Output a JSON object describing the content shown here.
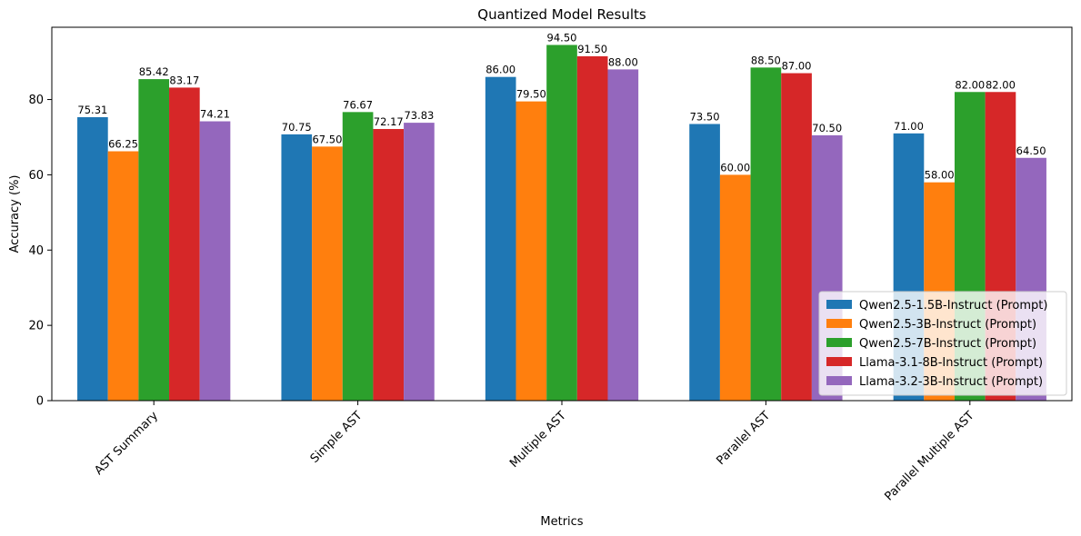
{
  "chart_data": {
    "type": "bar",
    "title": "Quantized Model Results",
    "xlabel": "Metrics",
    "ylabel": "Accuracy (%)",
    "ylim": [
      0,
      99.2
    ],
    "yticks": [
      0,
      20,
      40,
      60,
      80
    ],
    "categories": [
      "AST Summary",
      "Simple AST",
      "Multiple AST",
      "Parallel AST",
      "Parallel Multiple AST"
    ],
    "series": [
      {
        "name": "Qwen2.5-1.5B-Instruct (Prompt)",
        "color": "#1f77b4",
        "values": [
          75.31,
          70.75,
          86.0,
          73.5,
          71.0
        ],
        "labels": [
          "75.31",
          "70.75",
          "86.00",
          "73.50",
          "71.00"
        ]
      },
      {
        "name": "Qwen2.5-3B-Instruct (Prompt)",
        "color": "#ff7f0e",
        "values": [
          66.25,
          67.5,
          79.5,
          60.0,
          58.0
        ],
        "labels": [
          "66.25",
          "67.50",
          "79.50",
          "60.00",
          "58.00"
        ]
      },
      {
        "name": "Qwen2.5-7B-Instruct (Prompt)",
        "color": "#2ca02c",
        "values": [
          85.42,
          76.67,
          94.5,
          88.5,
          82.0
        ],
        "labels": [
          "85.42",
          "76.67",
          "94.50",
          "88.50",
          "82.00"
        ]
      },
      {
        "name": "Llama-3.1-8B-Instruct (Prompt)",
        "color": "#d62728",
        "values": [
          83.17,
          72.17,
          91.5,
          87.0,
          82.0
        ],
        "labels": [
          "83.17",
          "72.17",
          "91.50",
          "87.00",
          "82.00"
        ]
      },
      {
        "name": "Llama-3.2-3B-Instruct (Prompt)",
        "color": "#9467bd",
        "values": [
          74.21,
          73.83,
          88.0,
          70.5,
          64.5
        ],
        "labels": [
          "74.21",
          "73.83",
          "88.00",
          "70.50",
          "64.50"
        ]
      }
    ],
    "legend_position": "bottom-right",
    "grid": false
  }
}
